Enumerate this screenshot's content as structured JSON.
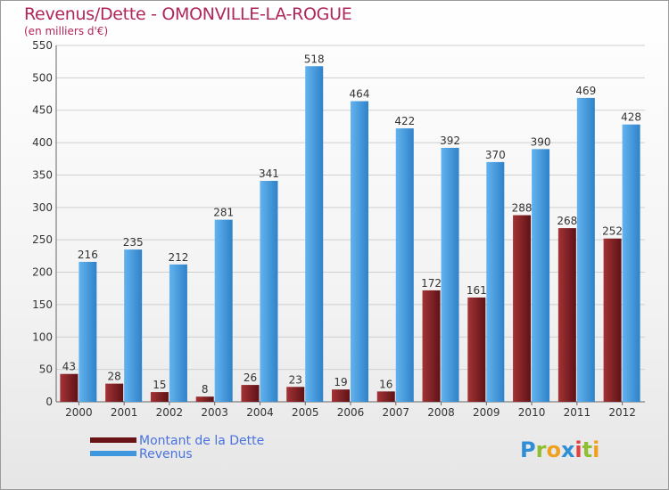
{
  "title": "Revenus/Dette - OMONVILLE-LA-ROGUE",
  "subtitle": "(en milliers d'€)",
  "logo": {
    "letters": [
      {
        "ch": "P",
        "color": "#2f8fd6"
      },
      {
        "ch": "r",
        "color": "#8dbf2f"
      },
      {
        "ch": "o",
        "color": "#f0a020"
      },
      {
        "ch": "x",
        "color": "#2f8fd6"
      },
      {
        "ch": "i",
        "color": "#e04040"
      },
      {
        "ch": "t",
        "color": "#8dbf2f"
      },
      {
        "ch": "i",
        "color": "#f0a020"
      }
    ]
  },
  "chart_data": {
    "type": "bar",
    "categories": [
      "2000",
      "2001",
      "2002",
      "2003",
      "2004",
      "2005",
      "2006",
      "2007",
      "2008",
      "2009",
      "2010",
      "2011",
      "2012"
    ],
    "series": [
      {
        "name": "Montant de la Dette",
        "color": "#7e1f22",
        "values": [
          43,
          28,
          15,
          8,
          26,
          23,
          19,
          16,
          172,
          161,
          288,
          268,
          252
        ]
      },
      {
        "name": "Revenus",
        "color": "#3f97de",
        "values": [
          216,
          235,
          212,
          281,
          341,
          518,
          464,
          422,
          392,
          370,
          390,
          469,
          428
        ]
      }
    ],
    "y_ticks": [
      0,
      50,
      100,
      150,
      200,
      250,
      300,
      350,
      400,
      450,
      500,
      550
    ],
    "ylim": [
      0,
      550
    ],
    "grid": true,
    "legend_position": "bottom-left"
  }
}
